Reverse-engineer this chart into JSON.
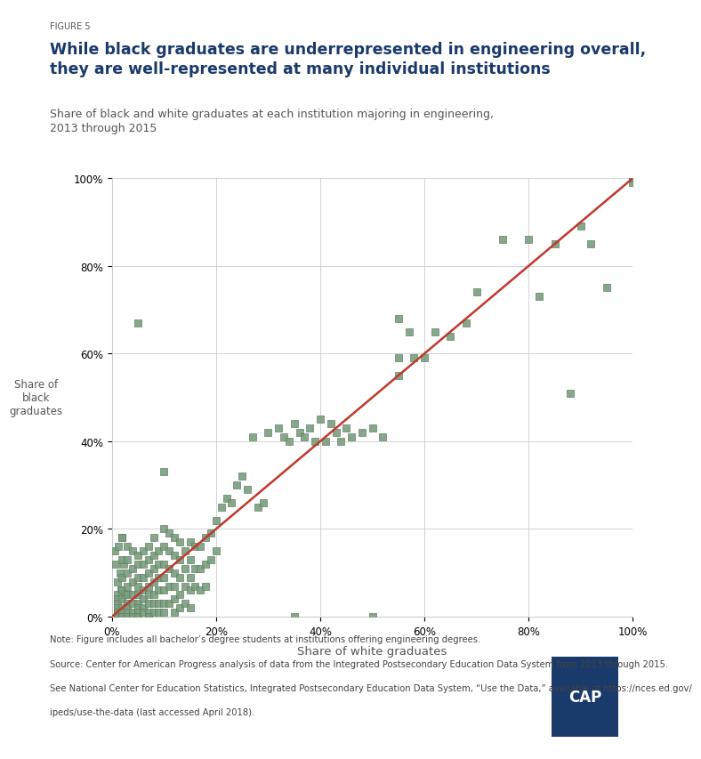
{
  "figure_label": "FIGURE 5",
  "title": "While black graduates are underrepresented in engineering overall,\nthey are well-represented at many individual institutions",
  "subtitle": "Share of black and white graduates at each institution majoring in engineering,\n2013 through 2015",
  "xlabel": "Share of white graduates",
  "ylabel": "Share of\nblack\ngraduates",
  "note": "Note: Figure includes all bachelor’s degree students at institutions offering engineering degrees.",
  "source_line1": "Source: Center for American Progress analysis of data from the Integrated Postsecondary Education Data System from 2013 through 2015.",
  "source_line2": "See National Center for Education Statistics, Integrated Postsecondary Education Data System, “Use the Data,” available at https://nces.ed.gov/",
  "source_line3": "ipeds/use-the-data (last accessed April 2018).",
  "scatter_color": "#7a9e7e",
  "scatter_edge_color": "#5a7a5e",
  "line_color": "#c0392b",
  "background_color": "#ffffff",
  "title_color": "#1a3a6b",
  "label_color": "#555555",
  "figure_label_color": "#555555",
  "subtitle_color": "#555555",
  "cap_logo_color": "#1a3a6b",
  "x_data": [
    0.005,
    0.008,
    0.01,
    0.012,
    0.015,
    0.018,
    0.02,
    0.022,
    0.025,
    0.01,
    0.01,
    0.01,
    0.01,
    0.01,
    0.01,
    0.01,
    0.01,
    0.01,
    0.02,
    0.02,
    0.02,
    0.02,
    0.02,
    0.02,
    0.02,
    0.02,
    0.03,
    0.03,
    0.03,
    0.03,
    0.03,
    0.03,
    0.03,
    0.03,
    0.03,
    0.04,
    0.04,
    0.04,
    0.04,
    0.04,
    0.04,
    0.04,
    0.05,
    0.05,
    0.05,
    0.05,
    0.05,
    0.05,
    0.05,
    0.05,
    0.05,
    0.06,
    0.06,
    0.06,
    0.06,
    0.06,
    0.06,
    0.06,
    0.07,
    0.07,
    0.07,
    0.07,
    0.07,
    0.07,
    0.07,
    0.07,
    0.08,
    0.08,
    0.08,
    0.08,
    0.08,
    0.08,
    0.08,
    0.09,
    0.09,
    0.09,
    0.09,
    0.09,
    0.09,
    0.1,
    0.1,
    0.1,
    0.1,
    0.1,
    0.1,
    0.1,
    0.11,
    0.11,
    0.11,
    0.11,
    0.11,
    0.12,
    0.12,
    0.12,
    0.12,
    0.12,
    0.12,
    0.13,
    0.13,
    0.13,
    0.13,
    0.13,
    0.14,
    0.14,
    0.14,
    0.14,
    0.15,
    0.15,
    0.15,
    0.15,
    0.15,
    0.16,
    0.16,
    0.16,
    0.17,
    0.17,
    0.17,
    0.18,
    0.18,
    0.18,
    0.19,
    0.19,
    0.2,
    0.2,
    0.21,
    0.22,
    0.23,
    0.24,
    0.25,
    0.26,
    0.27,
    0.28,
    0.29,
    0.3,
    0.32,
    0.33,
    0.34,
    0.35,
    0.36,
    0.37,
    0.38,
    0.39,
    0.4,
    0.41,
    0.42,
    0.43,
    0.44,
    0.45,
    0.46,
    0.48,
    0.5,
    0.52,
    0.55,
    0.57,
    0.58,
    0.6,
    0.62,
    0.65,
    0.68,
    0.7,
    0.75,
    0.8,
    0.82,
    0.85,
    0.88,
    0.9,
    0.92,
    0.95,
    1.0,
    1.0,
    1.0,
    0.05,
    0.1,
    0.35,
    0.5,
    0.55,
    0.55
  ],
  "y_data": [
    0.15,
    0.12,
    0.08,
    0.16,
    0.1,
    0.06,
    0.18,
    0.12,
    0.05,
    0.05,
    0.04,
    0.03,
    0.02,
    0.01,
    0.01,
    0.0,
    0.0,
    0.0,
    0.18,
    0.13,
    0.09,
    0.06,
    0.04,
    0.02,
    0.01,
    0.0,
    0.16,
    0.13,
    0.1,
    0.07,
    0.05,
    0.03,
    0.02,
    0.01,
    0.0,
    0.15,
    0.11,
    0.08,
    0.05,
    0.03,
    0.01,
    0.0,
    0.14,
    0.12,
    0.09,
    0.07,
    0.05,
    0.03,
    0.02,
    0.01,
    0.0,
    0.15,
    0.12,
    0.09,
    0.06,
    0.04,
    0.02,
    0.01,
    0.16,
    0.13,
    0.1,
    0.07,
    0.05,
    0.03,
    0.01,
    0.0,
    0.18,
    0.14,
    0.11,
    0.08,
    0.05,
    0.03,
    0.01,
    0.15,
    0.12,
    0.09,
    0.06,
    0.03,
    0.01,
    0.2,
    0.16,
    0.12,
    0.09,
    0.06,
    0.03,
    0.01,
    0.19,
    0.15,
    0.11,
    0.07,
    0.03,
    0.18,
    0.14,
    0.1,
    0.07,
    0.04,
    0.01,
    0.17,
    0.13,
    0.09,
    0.05,
    0.02,
    0.15,
    0.11,
    0.07,
    0.03,
    0.17,
    0.13,
    0.09,
    0.06,
    0.02,
    0.16,
    0.11,
    0.07,
    0.16,
    0.11,
    0.06,
    0.18,
    0.12,
    0.07,
    0.19,
    0.13,
    0.22,
    0.15,
    0.25,
    0.27,
    0.26,
    0.3,
    0.32,
    0.29,
    0.41,
    0.25,
    0.26,
    0.42,
    0.43,
    0.41,
    0.4,
    0.44,
    0.42,
    0.41,
    0.43,
    0.4,
    0.45,
    0.4,
    0.44,
    0.42,
    0.4,
    0.43,
    0.41,
    0.42,
    0.43,
    0.41,
    0.55,
    0.65,
    0.59,
    0.59,
    0.65,
    0.64,
    0.67,
    0.74,
    0.86,
    0.86,
    0.73,
    0.85,
    0.51,
    0.89,
    0.85,
    0.75,
    1.0,
    0.99,
    1.0,
    0.67,
    0.33,
    0.0,
    0.0,
    0.68,
    0.59
  ],
  "ylim": [
    0.0,
    1.0
  ],
  "xlim": [
    0.0,
    1.0
  ]
}
